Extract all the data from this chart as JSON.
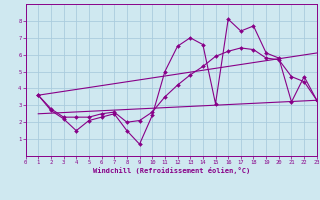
{
  "xlabel": "Windchill (Refroidissement éolien,°C)",
  "bg_color": "#cfe8f0",
  "grid_color": "#aaccdd",
  "line_color": "#880088",
  "xlim": [
    0,
    23
  ],
  "ylim": [
    0,
    9
  ],
  "xticks": [
    0,
    1,
    2,
    3,
    4,
    5,
    6,
    7,
    8,
    9,
    10,
    11,
    12,
    13,
    14,
    15,
    16,
    17,
    18,
    19,
    20,
    21,
    22,
    23
  ],
  "yticks": [
    1,
    2,
    3,
    4,
    5,
    6,
    7,
    8
  ],
  "series1_x": [
    1,
    2,
    3,
    4,
    5,
    6,
    7,
    8,
    9,
    10,
    11,
    12,
    13,
    14,
    15,
    16,
    17,
    18,
    19,
    20,
    21,
    22,
    23
  ],
  "series1_y": [
    3.6,
    2.7,
    2.2,
    1.5,
    2.1,
    2.3,
    2.5,
    1.5,
    0.7,
    2.4,
    5.0,
    6.5,
    7.0,
    6.6,
    3.1,
    8.1,
    7.4,
    7.7,
    6.1,
    5.8,
    3.2,
    4.7,
    3.3
  ],
  "series2_x": [
    1,
    2,
    3,
    4,
    5,
    6,
    7,
    8,
    9,
    10,
    11,
    12,
    13,
    14,
    15,
    16,
    17,
    18,
    19,
    20,
    21,
    22,
    23
  ],
  "series2_y": [
    3.6,
    2.8,
    2.3,
    2.3,
    2.3,
    2.5,
    2.6,
    2.0,
    2.1,
    2.6,
    3.5,
    4.2,
    4.8,
    5.3,
    5.9,
    6.2,
    6.4,
    6.3,
    5.8,
    5.7,
    4.7,
    4.4,
    3.3
  ],
  "line3_x": [
    1,
    23
  ],
  "line3_y": [
    3.6,
    6.1
  ],
  "line4_x": [
    1,
    23
  ],
  "line4_y": [
    2.5,
    3.3
  ]
}
